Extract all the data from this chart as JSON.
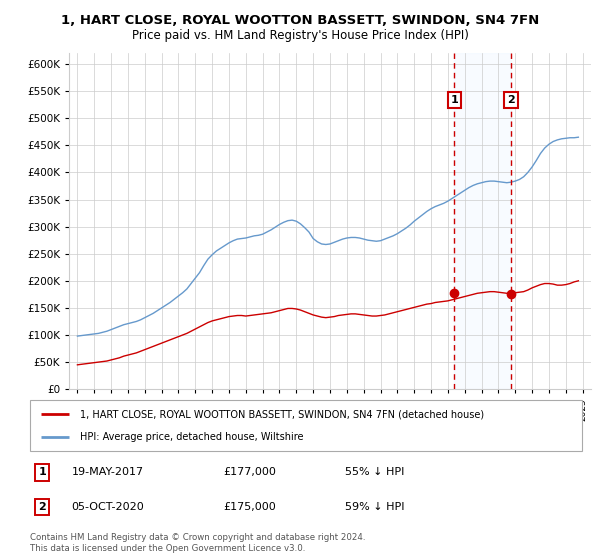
{
  "title": "1, HART CLOSE, ROYAL WOOTTON BASSETT, SWINDON, SN4 7FN",
  "subtitle": "Price paid vs. HM Land Registry's House Price Index (HPI)",
  "legend_line1": "1, HART CLOSE, ROYAL WOOTTON BASSETT, SWINDON, SN4 7FN (detached house)",
  "legend_line2": "HPI: Average price, detached house, Wiltshire",
  "sale1_date": 2017.38,
  "sale1_price": 177000,
  "sale1_label": "19-MAY-2017",
  "sale1_pct": "55% ↓ HPI",
  "sale2_date": 2020.75,
  "sale2_price": 175000,
  "sale2_label": "05-OCT-2020",
  "sale2_pct": "59% ↓ HPI",
  "footer": "Contains HM Land Registry data © Crown copyright and database right 2024.\nThis data is licensed under the Open Government Licence v3.0.",
  "ylim": [
    0,
    620000
  ],
  "xlim_start": 1994.5,
  "xlim_end": 2025.5,
  "hpi_color": "#6699cc",
  "price_color": "#cc0000",
  "vline_color": "#cc0000",
  "highlight_bg": "#ddeeff",
  "years_hpi": [
    1995,
    1995.25,
    1995.5,
    1995.75,
    1996,
    1996.25,
    1996.5,
    1996.75,
    1997,
    1997.25,
    1997.5,
    1997.75,
    1998,
    1998.25,
    1998.5,
    1998.75,
    1999,
    1999.25,
    1999.5,
    1999.75,
    2000,
    2000.25,
    2000.5,
    2000.75,
    2001,
    2001.25,
    2001.5,
    2001.75,
    2002,
    2002.25,
    2002.5,
    2002.75,
    2003,
    2003.25,
    2003.5,
    2003.75,
    2004,
    2004.25,
    2004.5,
    2004.75,
    2005,
    2005.25,
    2005.5,
    2005.75,
    2006,
    2006.25,
    2006.5,
    2006.75,
    2007,
    2007.25,
    2007.5,
    2007.75,
    2008,
    2008.25,
    2008.5,
    2008.75,
    2009,
    2009.25,
    2009.5,
    2009.75,
    2010,
    2010.25,
    2010.5,
    2010.75,
    2011,
    2011.25,
    2011.5,
    2011.75,
    2012,
    2012.25,
    2012.5,
    2012.75,
    2013,
    2013.25,
    2013.5,
    2013.75,
    2014,
    2014.25,
    2014.5,
    2014.75,
    2015,
    2015.25,
    2015.5,
    2015.75,
    2016,
    2016.25,
    2016.5,
    2016.75,
    2017,
    2017.25,
    2017.5,
    2017.75,
    2018,
    2018.25,
    2018.5,
    2018.75,
    2019,
    2019.25,
    2019.5,
    2019.75,
    2020,
    2020.25,
    2020.5,
    2020.75,
    2021,
    2021.25,
    2021.5,
    2021.75,
    2022,
    2022.25,
    2022.5,
    2022.75,
    2023,
    2023.25,
    2023.5,
    2023.75,
    2024,
    2024.25,
    2024.5,
    2024.75
  ],
  "hpi_vals": [
    98000,
    99000,
    100000,
    101000,
    102000,
    103000,
    105000,
    107000,
    110000,
    113000,
    116000,
    119000,
    121000,
    123000,
    125000,
    128000,
    132000,
    136000,
    140000,
    145000,
    150000,
    155000,
    160000,
    166000,
    172000,
    178000,
    185000,
    195000,
    205000,
    215000,
    228000,
    240000,
    248000,
    255000,
    260000,
    265000,
    270000,
    274000,
    277000,
    278000,
    279000,
    281000,
    283000,
    284000,
    286000,
    290000,
    294000,
    299000,
    304000,
    308000,
    311000,
    312000,
    310000,
    305000,
    298000,
    290000,
    278000,
    272000,
    268000,
    267000,
    268000,
    271000,
    274000,
    277000,
    279000,
    280000,
    280000,
    279000,
    277000,
    275000,
    274000,
    273000,
    274000,
    277000,
    280000,
    283000,
    287000,
    292000,
    297000,
    303000,
    310000,
    316000,
    322000,
    328000,
    333000,
    337000,
    340000,
    343000,
    347000,
    352000,
    357000,
    362000,
    367000,
    372000,
    376000,
    379000,
    381000,
    383000,
    384000,
    384000,
    383000,
    382000,
    381000,
    382000,
    384000,
    387000,
    392000,
    400000,
    410000,
    422000,
    435000,
    445000,
    452000,
    457000,
    460000,
    462000,
    463000,
    464000,
    464000,
    465000
  ],
  "red_vals": [
    45000,
    46000,
    47000,
    48000,
    49000,
    50000,
    51000,
    52000,
    54000,
    56000,
    58000,
    61000,
    63000,
    65000,
    67000,
    70000,
    73000,
    76000,
    79000,
    82000,
    85000,
    88000,
    91000,
    94000,
    97000,
    100000,
    103000,
    107000,
    111000,
    115000,
    119000,
    123000,
    126000,
    128000,
    130000,
    132000,
    134000,
    135000,
    136000,
    136000,
    135000,
    136000,
    137000,
    138000,
    139000,
    140000,
    141000,
    143000,
    145000,
    147000,
    149000,
    149000,
    148000,
    146000,
    143000,
    140000,
    137000,
    135000,
    133000,
    132000,
    133000,
    134000,
    136000,
    137000,
    138000,
    139000,
    139000,
    138000,
    137000,
    136000,
    135000,
    135000,
    136000,
    137000,
    139000,
    141000,
    143000,
    145000,
    147000,
    149000,
    151000,
    153000,
    155000,
    157000,
    158000,
    160000,
    161000,
    162000,
    163000,
    165000,
    167000,
    169000,
    171000,
    173000,
    175000,
    177000,
    178000,
    179000,
    180000,
    180000,
    179000,
    178000,
    177000,
    177000,
    178000,
    179000,
    180000,
    183000,
    187000,
    190000,
    193000,
    195000,
    195000,
    194000,
    192000,
    192000,
    193000,
    195000,
    198000,
    200000
  ]
}
